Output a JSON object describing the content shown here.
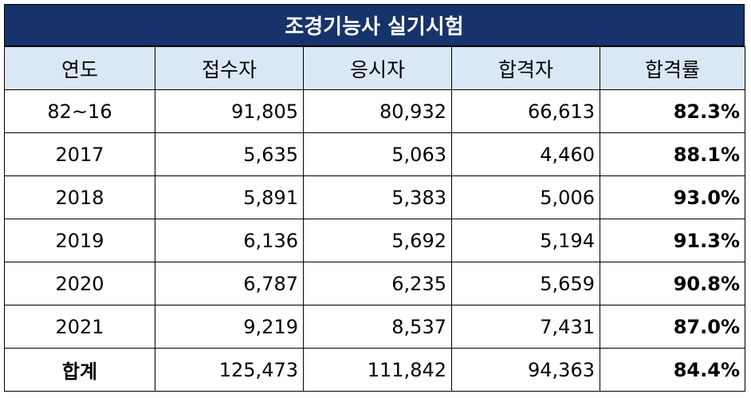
{
  "title": "조경기능사 실기시험",
  "columns": [
    "연도",
    "접수자",
    "응시자",
    "합격자",
    "합격률"
  ],
  "rows": [
    {
      "year": "82~16",
      "applicants": "91,805",
      "examinees": "80,932",
      "passed": "66,613",
      "rate": "82.3%"
    },
    {
      "year": "2017",
      "applicants": "5,635",
      "examinees": "5,063",
      "passed": "4,460",
      "rate": "88.1%"
    },
    {
      "year": "2018",
      "applicants": "5,891",
      "examinees": "5,383",
      "passed": "5,006",
      "rate": "93.0%"
    },
    {
      "year": "2019",
      "applicants": "6,136",
      "examinees": "5,692",
      "passed": "5,194",
      "rate": "91.3%"
    },
    {
      "year": "2020",
      "applicants": "6,787",
      "examinees": "6,235",
      "passed": "5,659",
      "rate": "90.8%"
    },
    {
      "year": "2021",
      "applicants": "9,219",
      "examinees": "8,537",
      "passed": "7,431",
      "rate": "87.0%"
    }
  ],
  "total": {
    "year": "합계",
    "applicants": "125,473",
    "examinees": "111,842",
    "passed": "94,363",
    "rate": "84.4%"
  },
  "colors": {
    "title_background": "#17336b",
    "title_text": "#ffffff",
    "header_background": "#dae8f5",
    "border": "#000000"
  }
}
